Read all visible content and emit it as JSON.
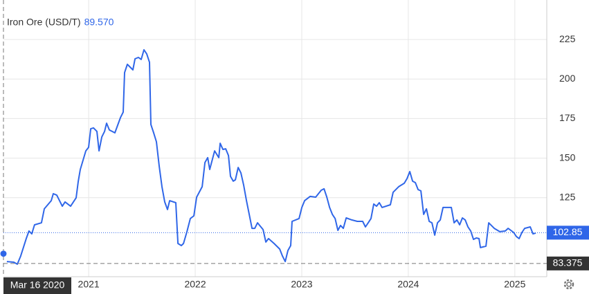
{
  "chart_data": {
    "type": "line",
    "title": "Iron Ore (USD/T)",
    "header_value": {
      "value": 89.57,
      "label": "89.570"
    },
    "color": "#2f66e8",
    "x": [
      2020.232,
      2020.297,
      2020.33,
      2020.362,
      2020.414,
      2020.44,
      2020.466,
      2020.492,
      2020.557,
      2020.583,
      2020.648,
      2020.668,
      2020.7,
      2020.752,
      2020.778,
      2020.83,
      2020.882,
      2020.902,
      2020.921,
      2020.973,
      2020.999,
      2021.019,
      2021.045,
      2021.077,
      2021.097,
      2021.123,
      2021.149,
      2021.168,
      2021.194,
      2021.246,
      2021.298,
      2021.324,
      2021.337,
      2021.363,
      2021.415,
      2021.435,
      2021.467,
      2021.493,
      2021.519,
      2021.545,
      2021.571,
      2021.584,
      2021.61,
      2021.636,
      2021.662,
      2021.688,
      2021.714,
      2021.74,
      2021.76,
      2021.818,
      2021.838,
      2021.87,
      2021.89,
      2021.922,
      2021.954,
      2021.987,
      2022.013,
      2022.065,
      2022.091,
      2022.117,
      2022.136,
      2022.182,
      2022.221,
      2022.234,
      2022.26,
      2022.286,
      2022.312,
      2022.331,
      2022.357,
      2022.377,
      2022.403,
      2022.429,
      2022.455,
      2022.481,
      2022.507,
      2022.533,
      2022.559,
      2022.585,
      2022.637,
      2022.663,
      2022.688,
      2022.74,
      2022.793,
      2022.819,
      2022.845,
      2022.87,
      2022.896,
      2022.909,
      2022.975,
      2023.001,
      2023.027,
      2023.079,
      2023.131,
      2023.183,
      2023.209,
      2023.235,
      2023.261,
      2023.287,
      2023.313,
      2023.339,
      2023.364,
      2023.39,
      2023.417,
      2023.469,
      2023.521,
      2023.572,
      2023.598,
      2023.624,
      2023.65,
      2023.676,
      2023.702,
      2023.728,
      2023.754,
      2023.832,
      2023.858,
      2023.91,
      2023.962,
      2023.988,
      2024.014,
      2024.04,
      2024.066,
      2024.092,
      2024.118,
      2024.144,
      2024.17,
      2024.196,
      2024.222,
      2024.248,
      2024.274,
      2024.3,
      2024.326,
      2024.404,
      2024.43,
      2024.456,
      2024.482,
      2024.508,
      2024.534,
      2024.56,
      2024.586,
      2024.612,
      2024.638,
      2024.664,
      2024.677,
      2024.729,
      2024.755,
      2024.807,
      2024.859,
      2024.911,
      2024.937,
      2024.989,
      2025.015,
      2025.041,
      2025.067,
      2025.093,
      2025.145,
      2025.171,
      2025.197
    ],
    "values": [
      84.6,
      84.2,
      82.9,
      88.1,
      99.1,
      103.9,
      102.1,
      107.8,
      109.1,
      117.9,
      123.1,
      127.5,
      126.6,
      119.6,
      122.3,
      119.6,
      124.9,
      135.4,
      142.8,
      154.6,
      156.8,
      168.6,
      169.1,
      166.9,
      154.6,
      163.4,
      166.9,
      172.1,
      167.8,
      166.0,
      175.6,
      179.1,
      204.1,
      209.3,
      205.8,
      212.8,
      213.7,
      212.4,
      218.5,
      215.9,
      210.6,
      171.3,
      166.0,
      160.3,
      145.0,
      131.9,
      122.3,
      117.5,
      123.1,
      121.8,
      96.0,
      94.7,
      96.0,
      103.5,
      111.8,
      113.5,
      125.3,
      131.9,
      147.2,
      150.3,
      142.8,
      154.6,
      150.3,
      159.4,
      155.5,
      155.9,
      151.6,
      138.5,
      135.4,
      136.3,
      144.1,
      140.6,
      132.8,
      123.1,
      114.4,
      105.6,
      105.6,
      109.1,
      104.8,
      96.9,
      99.1,
      96.0,
      92.5,
      88.1,
      84.6,
      91.6,
      94.7,
      110.0,
      111.8,
      118.8,
      123.1,
      125.8,
      125.3,
      129.7,
      130.6,
      125.3,
      118.8,
      114.4,
      111.8,
      104.3,
      107.4,
      105.6,
      112.2,
      110.9,
      110.0,
      110.0,
      106.5,
      109.1,
      111.8,
      121.0,
      119.6,
      121.8,
      118.8,
      120.5,
      128.4,
      131.9,
      134.1,
      137.1,
      141.5,
      135.4,
      134.5,
      130.1,
      129.3,
      114.4,
      117.9,
      110.0,
      109.1,
      101.3,
      109.1,
      110.9,
      118.8,
      118.8,
      109.1,
      110.9,
      107.8,
      112.2,
      110.9,
      106.5,
      103.9,
      98.6,
      99.5,
      99.1,
      93.4,
      94.3,
      109.1,
      105.6,
      103.5,
      103.9,
      105.6,
      103.0,
      100.4,
      99.1,
      103.0,
      105.6,
      106.5,
      102.1,
      102.6
    ],
    "last_value": 102.85,
    "crosshair": {
      "x_label": "Mar 16 2020",
      "y": 83.375
    },
    "xlim": [
      2020.2,
      2025.3
    ],
    "xticks": [
      2021,
      2022,
      2023,
      2024,
      2025
    ],
    "ylim": [
      75,
      250
    ],
    "yticks": [
      125,
      150,
      175,
      200,
      225
    ],
    "grid": true
  }
}
